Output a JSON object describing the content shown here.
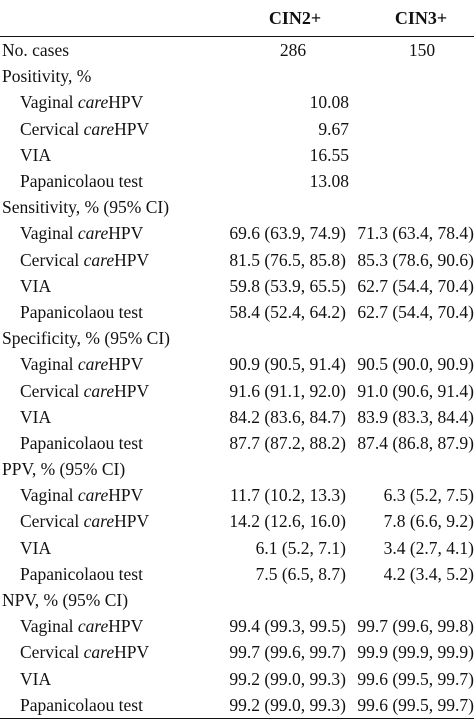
{
  "header": {
    "col1": "CIN2+",
    "col2": "CIN3+"
  },
  "cases": {
    "label": "No. cases",
    "cin2": "286",
    "cin3": "150"
  },
  "positivity": {
    "heading": "Positivity, %",
    "rows": [
      {
        "pre": "Vaginal ",
        "em": "care",
        "post": "HPV",
        "value": "10.08"
      },
      {
        "pre": "Cervical ",
        "em": "care",
        "post": "HPV",
        "value": "9.67"
      },
      {
        "pre": "VIA",
        "em": "",
        "post": "",
        "value": "16.55"
      },
      {
        "pre": "Papanicolaou test",
        "em": "",
        "post": "",
        "value": "13.08"
      }
    ]
  },
  "sensitivity": {
    "heading": "Sensitivity, % (95% CI)",
    "rows": [
      {
        "pre": "Vaginal ",
        "em": "care",
        "post": "HPV",
        "cin2": "69.6 (63.9, 74.9)",
        "cin3": "71.3 (63.4, 78.4)"
      },
      {
        "pre": "Cervical ",
        "em": "care",
        "post": "HPV",
        "cin2": "81.5 (76.5, 85.8)",
        "cin3": "85.3 (78.6, 90.6)"
      },
      {
        "pre": "VIA",
        "em": "",
        "post": "",
        "cin2": "59.8 (53.9, 65.5)",
        "cin3": "62.7 (54.4, 70.4)"
      },
      {
        "pre": "Papanicolaou test",
        "em": "",
        "post": "",
        "cin2": "58.4 (52.4, 64.2)",
        "cin3": "62.7 (54.4, 70.4)"
      }
    ]
  },
  "specificity": {
    "heading": "Specificity, % (95% CI)",
    "rows": [
      {
        "pre": "Vaginal ",
        "em": "care",
        "post": "HPV",
        "cin2": "90.9 (90.5, 91.4)",
        "cin3": "90.5 (90.0, 90.9)"
      },
      {
        "pre": "Cervical ",
        "em": "care",
        "post": "HPV",
        "cin2": "91.6 (91.1, 92.0)",
        "cin3": "91.0 (90.6, 91.4)"
      },
      {
        "pre": "VIA",
        "em": "",
        "post": "",
        "cin2": "84.2 (83.6, 84.7)",
        "cin3": "83.9 (83.3, 84.4)"
      },
      {
        "pre": "Papanicolaou test",
        "em": "",
        "post": "",
        "cin2": "87.7 (87.2, 88.2)",
        "cin3": "87.4 (86.8, 87.9)"
      }
    ]
  },
  "ppv": {
    "heading": "PPV, % (95% CI)",
    "rows": [
      {
        "pre": "Vaginal ",
        "em": "care",
        "post": "HPV",
        "cin2": "11.7 (10.2, 13.3)",
        "cin3": "6.3 (5.2, 7.5)"
      },
      {
        "pre": "Cervical ",
        "em": "care",
        "post": "HPV",
        "cin2": "14.2 (12.6, 16.0)",
        "cin3": "7.8 (6.6, 9.2)"
      },
      {
        "pre": "VIA",
        "em": "",
        "post": "",
        "cin2": "6.1 (5.2, 7.1)",
        "cin3": "3.4 (2.7, 4.1)"
      },
      {
        "pre": "Papanicolaou test",
        "em": "",
        "post": "",
        "cin2": "7.5 (6.5, 8.7)",
        "cin3": "4.2 (3.4, 5.2)"
      }
    ]
  },
  "npv": {
    "heading": "NPV, % (95% CI)",
    "rows": [
      {
        "pre": "Vaginal ",
        "em": "care",
        "post": "HPV",
        "cin2": "99.4 (99.3, 99.5)",
        "cin3": "99.7 (99.6, 99.8)"
      },
      {
        "pre": "Cervical ",
        "em": "care",
        "post": "HPV",
        "cin2": "99.7 (99.6, 99.7)",
        "cin3": "99.9 (99.9, 99.9)"
      },
      {
        "pre": "VIA",
        "em": "",
        "post": "",
        "cin2": "99.2 (99.0, 99.3)",
        "cin3": "99.6 (99.5, 99.7)"
      },
      {
        "pre": "Papanicolaou test",
        "em": "",
        "post": "",
        "cin2": "99.2 (99.0, 99.3)",
        "cin3": "99.6 (99.5, 99.7)"
      }
    ]
  }
}
